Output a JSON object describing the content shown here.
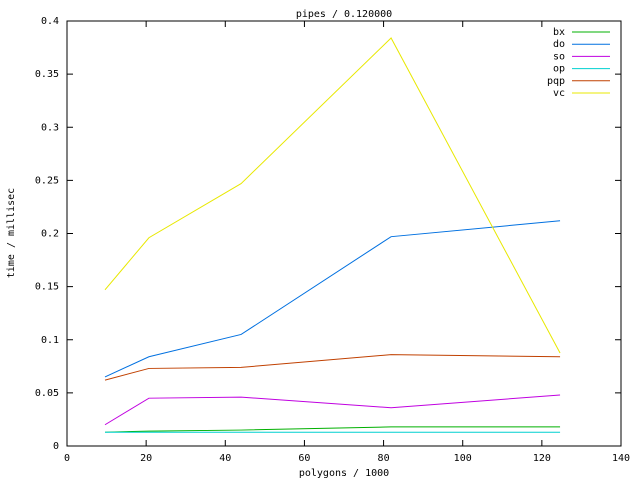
{
  "chart_data": {
    "type": "line",
    "title": "pipes / 0.120000",
    "x_label": "polygons / 1000",
    "y_label": "time / millisec",
    "x": [
      9.6,
      20.7,
      44,
      81.9,
      124.6
    ],
    "series": [
      {
        "name": "bx",
        "color": "#00b000",
        "values": [
          0.013,
          0.014,
          0.015,
          0.018,
          0.018
        ]
      },
      {
        "name": "do",
        "color": "#0070e0",
        "values": [
          0.065,
          0.084,
          0.105,
          0.197,
          0.212
        ]
      },
      {
        "name": "so",
        "color": "#c000e0",
        "values": [
          0.02,
          0.045,
          0.046,
          0.036,
          0.048
        ]
      },
      {
        "name": "op",
        "color": "#00d0d0",
        "values": [
          0.013,
          0.013,
          0.013,
          0.013,
          0.013
        ]
      },
      {
        "name": "pqp",
        "color": "#c04000",
        "values": [
          0.062,
          0.073,
          0.074,
          0.086,
          0.084
        ]
      },
      {
        "name": "vc",
        "color": "#e8e800",
        "values": [
          0.147,
          0.196,
          0.247,
          0.384,
          0.0875
        ]
      }
    ],
    "xlim": [
      0,
      140
    ],
    "xticks": [
      0,
      20,
      40,
      60,
      80,
      100,
      120,
      140
    ],
    "ylim": [
      0,
      0.4
    ],
    "yticks": [
      0,
      0.05,
      0.1,
      0.15,
      0.2,
      0.25,
      0.3,
      0.35,
      0.4
    ],
    "legend": "top-right",
    "grid": false
  }
}
